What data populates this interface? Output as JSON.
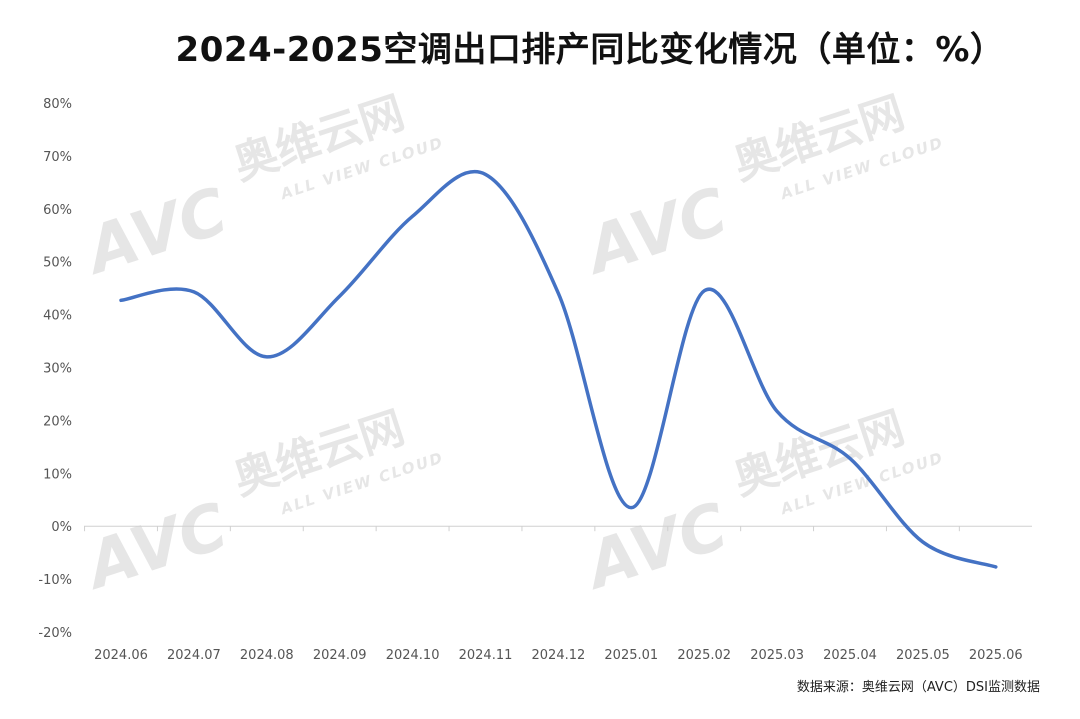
{
  "title": "2024-2025空调出口排产同比变化情况（单位：%）",
  "source": "数据来源：奥维云网（AVC）DSI监测数据",
  "watermark": {
    "logo_text": "AVC",
    "cn_text": "奥维云网",
    "en_text": "ALL VIEW CLOUD"
  },
  "colors": {
    "line": "#4472C4",
    "axis": "#d0d0d0",
    "tick_text": "#555555",
    "watermark": "#e6e6e6"
  },
  "chart_data": {
    "type": "line",
    "title": "2024-2025空调出口排产同比变化情况（单位：%）",
    "categories": [
      "2024.06",
      "2024.07",
      "2024.08",
      "2024.09",
      "2024.10",
      "2024.11",
      "2024.12",
      "2025.01",
      "2025.02",
      "2025.03",
      "2025.04",
      "2025.05",
      "2025.06"
    ],
    "series": [
      {
        "values": [
          42.7,
          44.3,
          32.0,
          43.5,
          58.6,
          66.5,
          44.0,
          3.5,
          44.5,
          21.7,
          12.8,
          -3.0,
          -7.7
        ]
      }
    ],
    "yticks": [
      "80%",
      "70%",
      "60%",
      "50%",
      "40%",
      "30%",
      "20%",
      "10%",
      "0%",
      "-10%",
      "-20%"
    ],
    "ylim": [
      -20,
      80
    ],
    "smooth": true,
    "grid": false,
    "legend": "none"
  }
}
